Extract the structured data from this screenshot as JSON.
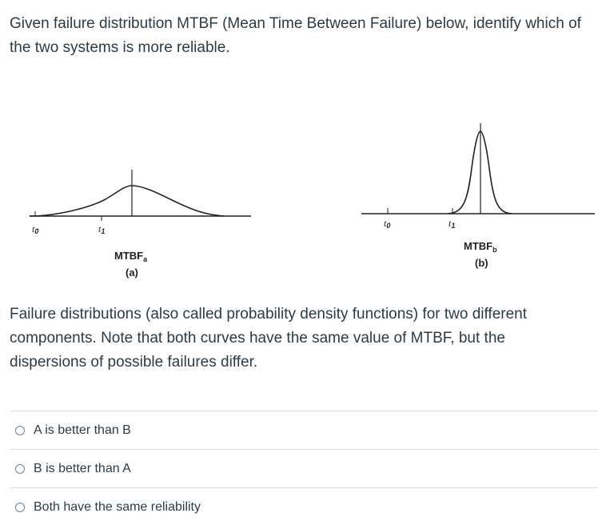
{
  "question": {
    "text": "Given failure distribution MTBF (Mean Time Between Failure) below, identify which of the two systems is more reliable."
  },
  "figure": {
    "panel_a": {
      "t0": "t",
      "t0_sub": "0",
      "t1": "t",
      "t1_sub": "1",
      "mtbf": "MTBF",
      "mtbf_sub": "a",
      "label": "(a)"
    },
    "panel_b": {
      "t0": "t",
      "t0_sub": "0",
      "t1": "t",
      "t1_sub": "1",
      "mtbf": "MTBF",
      "mtbf_sub": "b",
      "label": "(b)"
    }
  },
  "caption": {
    "text": "Failure distributions (also called probability density functions) for two different components. Note that both curves have the same value of MTBF, but the dispersions of possible failures differ."
  },
  "options": [
    {
      "label": "A is better than B"
    },
    {
      "label": "B is better than A"
    },
    {
      "label": "Both have the same reliability"
    }
  ]
}
